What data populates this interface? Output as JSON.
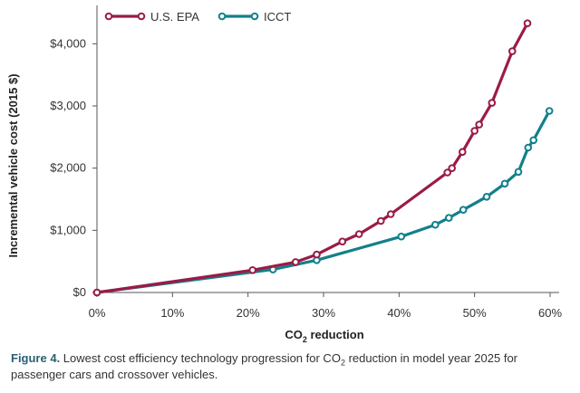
{
  "colors": {
    "epa": "#9b1b46",
    "icct": "#12808b",
    "axis": "#555555",
    "grid": "#d9d9d9",
    "caption_label": "#2b5f73"
  },
  "chart_data": {
    "type": "line",
    "ylabel": "Incremental vehicle cost (2015 $)",
    "xlabel_main": "CO",
    "xlabel_sub": "2",
    "xlabel_tail": " reduction",
    "xlim": [
      0,
      60
    ],
    "ylim": [
      0,
      4500
    ],
    "x_ticks": [
      0,
      10,
      20,
      30,
      40,
      50,
      60
    ],
    "x_tick_labels": [
      "0%",
      "10%",
      "20%",
      "30%",
      "40%",
      "50%",
      "60%"
    ],
    "y_ticks": [
      0,
      1000,
      2000,
      3000,
      4000
    ],
    "y_tick_labels": [
      "$0",
      "$1,000",
      "$2,000",
      "$3,000",
      "$4,000"
    ],
    "horizontal_grid": false,
    "legend_position": "top-left",
    "series": [
      {
        "name": "U.S. EPA",
        "color_key": "epa",
        "points": [
          [
            0,
            0
          ],
          [
            20.6,
            360
          ],
          [
            26.3,
            490
          ],
          [
            29.1,
            610
          ],
          [
            32.5,
            820
          ],
          [
            34.7,
            940
          ],
          [
            37.6,
            1150
          ],
          [
            38.9,
            1260
          ],
          [
            46.4,
            1930
          ],
          [
            47.0,
            2000
          ],
          [
            48.4,
            2260
          ],
          [
            50.0,
            2600
          ],
          [
            50.6,
            2700
          ],
          [
            52.3,
            3050
          ],
          [
            55.0,
            3880
          ],
          [
            57.0,
            4330
          ]
        ]
      },
      {
        "name": "ICCT",
        "color_key": "icct",
        "points": [
          [
            0,
            0
          ],
          [
            23.3,
            370
          ],
          [
            29.1,
            520
          ],
          [
            40.3,
            900
          ],
          [
            44.8,
            1090
          ],
          [
            46.6,
            1200
          ],
          [
            48.5,
            1330
          ],
          [
            51.6,
            1540
          ],
          [
            54.0,
            1750
          ],
          [
            55.8,
            1940
          ],
          [
            57.1,
            2330
          ],
          [
            57.8,
            2450
          ],
          [
            59.9,
            2920
          ]
        ]
      }
    ]
  },
  "caption": {
    "label": "Figure 4.",
    "text_a": " Lowest cost efficiency technology progression for CO",
    "text_sub": "2",
    "text_b": " reduction in model year 2025 for passenger cars and crossover vehicles."
  }
}
